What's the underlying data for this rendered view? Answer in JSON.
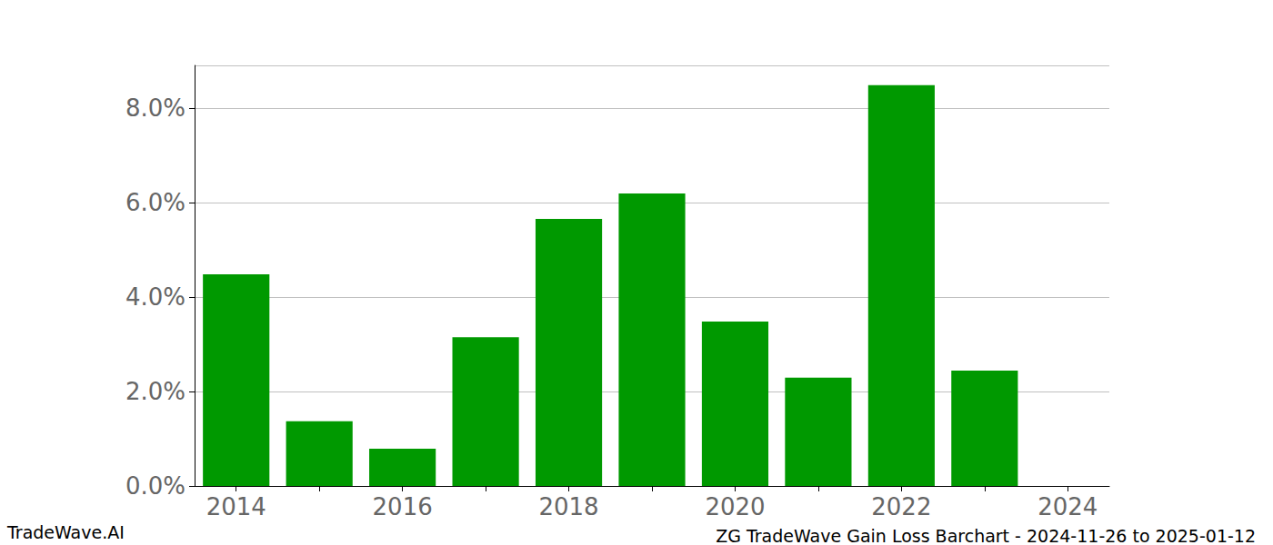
{
  "chart_data": {
    "type": "bar",
    "title": "ZG TradeWave Gain Loss Barchart - 2024-11-26 to 2025-01-12",
    "annotations": [
      "TradeWave.AI"
    ],
    "categories": [
      "2014",
      null,
      "2016",
      null,
      "2018",
      null,
      "2020",
      null,
      "2022",
      null,
      "2024"
    ],
    "values": [
      4.48,
      1.37,
      0.79,
      3.15,
      5.65,
      6.19,
      3.48,
      2.29,
      8.48,
      2.44,
      null
    ],
    "color": "#009900",
    "ylim": [
      0,
      8.9
    ],
    "yticks": [
      {
        "value": 0,
        "label": "0.0%"
      },
      {
        "value": 2,
        "label": "2.0%"
      },
      {
        "value": 4,
        "label": "4.0%"
      },
      {
        "value": 6,
        "label": "6.0%"
      },
      {
        "value": 8,
        "label": "8.0%"
      }
    ],
    "grid": true
  }
}
